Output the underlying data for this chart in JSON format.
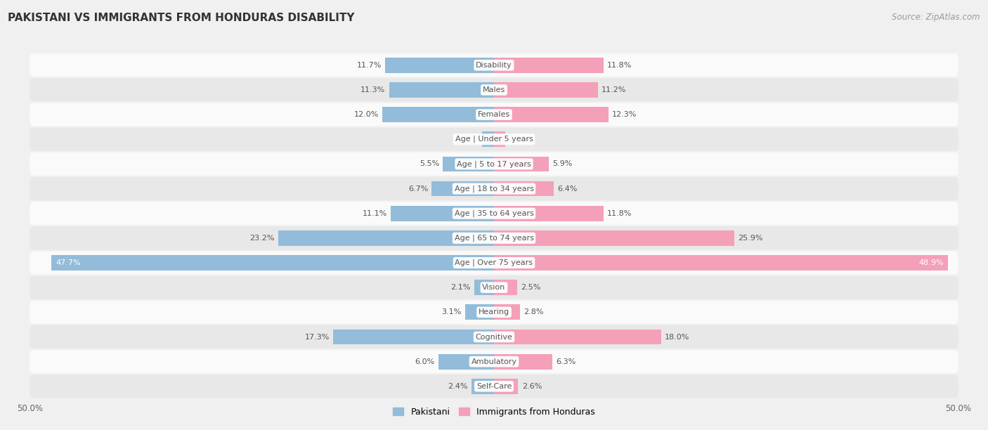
{
  "title": "PAKISTANI VS IMMIGRANTS FROM HONDURAS DISABILITY",
  "source": "Source: ZipAtlas.com",
  "categories": [
    "Disability",
    "Males",
    "Females",
    "Age | Under 5 years",
    "Age | 5 to 17 years",
    "Age | 18 to 34 years",
    "Age | 35 to 64 years",
    "Age | 65 to 74 years",
    "Age | Over 75 years",
    "Vision",
    "Hearing",
    "Cognitive",
    "Ambulatory",
    "Self-Care"
  ],
  "pakistani": [
    11.7,
    11.3,
    12.0,
    1.3,
    5.5,
    6.7,
    11.1,
    23.2,
    47.7,
    2.1,
    3.1,
    17.3,
    6.0,
    2.4
  ],
  "honduras": [
    11.8,
    11.2,
    12.3,
    1.2,
    5.9,
    6.4,
    11.8,
    25.9,
    48.9,
    2.5,
    2.8,
    18.0,
    6.3,
    2.6
  ],
  "pakistani_color": "#92bcd9",
  "honduras_color": "#f4a0b8",
  "pakistani_label": "Pakistani",
  "honduras_label": "Immigrants from Honduras",
  "axis_limit": 50.0,
  "background_color": "#f0f0f0",
  "row_bg_light": "#fafafa",
  "row_bg_dark": "#e8e8e8",
  "label_color_dark": "#555555",
  "label_color_light": "#ffffff",
  "over75_pk_text_color": "#ffffff",
  "over75_hd_text_color": "#ffffff"
}
